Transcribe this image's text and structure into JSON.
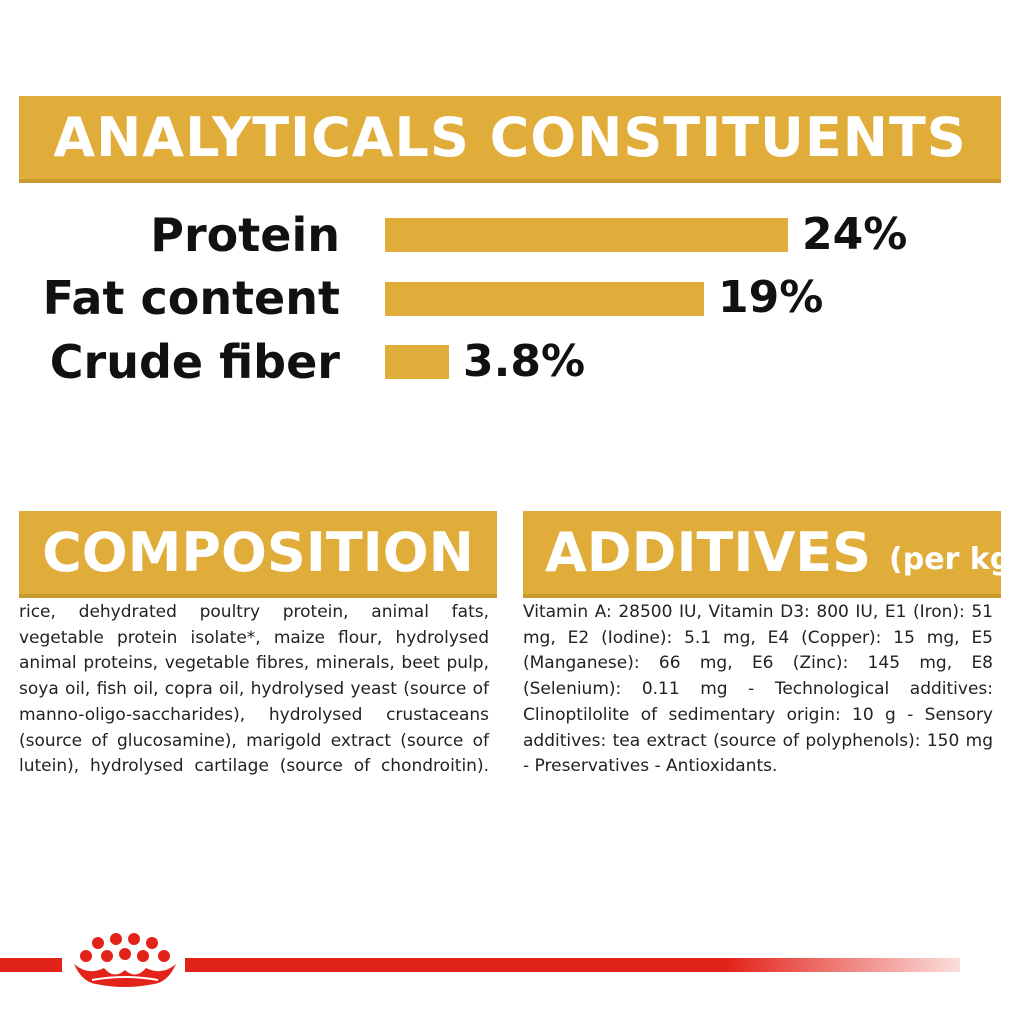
{
  "header": {
    "title": "ANALYTICALS CONSTITUENTS"
  },
  "analyticals": [
    {
      "label": "Protein",
      "value": "24%",
      "percent": 24
    },
    {
      "label": "Fat content",
      "value": "19%",
      "percent": 19
    },
    {
      "label": "Crude fiber",
      "value": "3.8%",
      "percent": 3.8
    }
  ],
  "composition": {
    "title": "COMPOSITION",
    "text": "rice, dehydrated poultry protein, animal fats, vegetable protein isolate*, maize flour, hydrolysed animal proteins, vegetable fibres, minerals, beet pulp, soya oil, fish oil, copra oil, hydrolysed yeast (source of manno-oligo-saccharides), hydrolysed crustaceans (source of glucosamine), marigold extract (source of lutein), hydrolysed cartilage (source of chondroitin)."
  },
  "additives": {
    "title": "ADDITIVES",
    "unit": "(per kg)",
    "text": "Vitamin A: 28500 IU, Vitamin D3: 800 IU, E1 (Iron): 51 mg, E2 (Iodine): 5.1 mg, E4 (Copper): 15 mg, E5 (Manganese): 66 mg, E6 (Zinc): 145 mg, E8 (Selenium): 0.11 mg - Technological additives: Clinoptilolite of sedimentary origin: 10 g - Sensory additives: tea extract (source of polyphenols): 150 mg - Preservatives - Antioxidants."
  },
  "colors": {
    "accent": "#e1ad3a",
    "brand_red": "#e2231a",
    "text": "#111111"
  },
  "footer": {
    "logo_icon": "crown-icon"
  }
}
